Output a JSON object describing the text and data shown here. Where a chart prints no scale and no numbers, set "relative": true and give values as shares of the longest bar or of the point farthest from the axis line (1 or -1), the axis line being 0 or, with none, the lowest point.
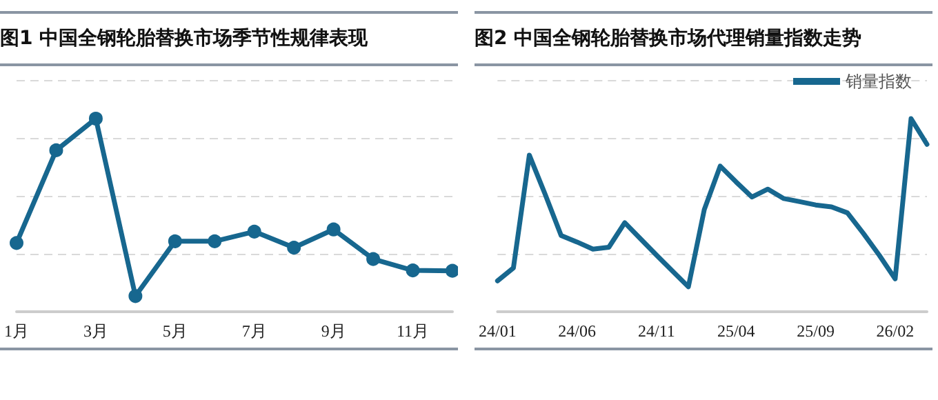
{
  "chart_data": [
    {
      "type": "line",
      "title": "图1  中国全钢轮胎替换市场季节性规律表现",
      "relative": true,
      "grid": "y",
      "legend": false,
      "marker": "circle",
      "line_style": "solid",
      "categories": [
        "1月",
        null,
        "3月",
        null,
        "5月",
        null,
        "7月",
        null,
        "9月",
        null,
        "11月",
        null
      ],
      "series": [
        {
          "color": "#17678f",
          "values": [
            0.356,
            0.836,
            1,
            0.081,
            0.365,
            0.365,
            0.415,
            0.332,
            0.426,
            0.273,
            0.214,
            0.212
          ]
        }
      ]
    },
    {
      "type": "line",
      "title": "图2  中国全钢轮胎替换市场代理销量指数走势",
      "relative": true,
      "grid": "y",
      "legend": "top right",
      "marker": "none",
      "line_style": "solid",
      "categories": [
        "24/01",
        null,
        null,
        null,
        null,
        "24/06",
        null,
        null,
        null,
        null,
        "24/11",
        null,
        null,
        null,
        null,
        "25/04",
        null,
        null,
        null,
        null,
        "25/09",
        null,
        null,
        null,
        null,
        "26/02",
        null,
        null
      ],
      "series": [
        {
          "name": "销量指数",
          "color": "#17678f",
          "values": [
            0.16,
            0.227,
            0.811,
            0.607,
            0.395,
            0.361,
            0.324,
            0.334,
            0.461,
            0.377,
            0.293,
            0.211,
            0.129,
            0.529,
            0.754,
            0.672,
            0.594,
            0.635,
            0.586,
            0.57,
            0.553,
            0.543,
            0.512,
            0.406,
            0.293,
            0.17,
            1,
            0.867
          ]
        }
      ]
    }
  ]
}
